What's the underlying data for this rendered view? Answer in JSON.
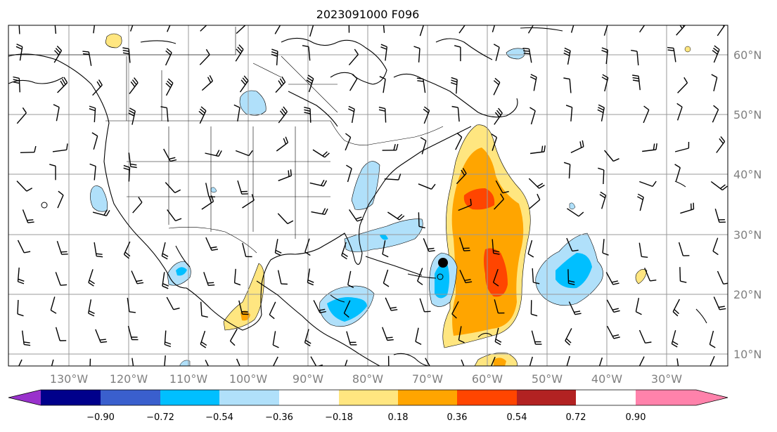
{
  "title": "2023091000 F096",
  "lon_labels": [
    "130°W",
    "120°W",
    "110°W",
    "100°W",
    "90°W",
    "80°W",
    "70°W",
    "60°W",
    "50°W",
    "40°W",
    "30°W"
  ],
  "lat_labels": [
    "60°N",
    "50°N",
    "40°N",
    "30°N",
    "20°N",
    "10°N"
  ],
  "colorbar": {
    "ticks": [
      "−0.90",
      "−0.72",
      "−0.54",
      "−0.36",
      "−0.18",
      "0.18",
      "0.36",
      "0.54",
      "0.72",
      "0.90"
    ],
    "colors": [
      "#9932cc",
      "#00008b",
      "#3a5fcd",
      "#00bfff",
      "#b0e0fa",
      "#ffffff",
      "#ffe680",
      "#ffa500",
      "#ff4500",
      "#b22222",
      "#ff82ab"
    ]
  },
  "fill_colors": {
    "light_yellow": "#ffe680",
    "orange": "#ffa500",
    "red_orange": "#ff4500",
    "light_blue": "#b0e0fa",
    "blue": "#00bfff"
  }
}
